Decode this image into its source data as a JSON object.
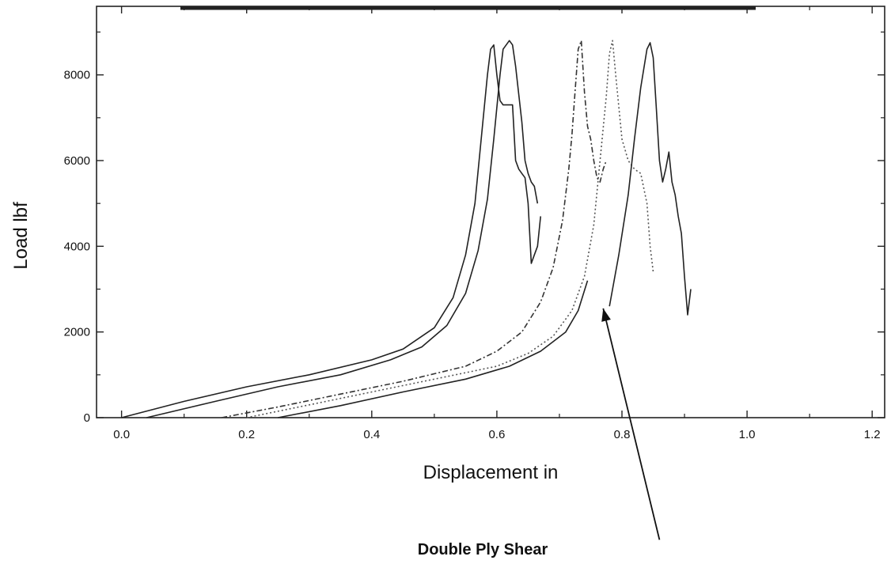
{
  "chart_data": {
    "type": "line",
    "xlabel": "Displacement in",
    "ylabel": "Load lbf",
    "caption": "Double Ply Shear",
    "xlim": [
      -0.04,
      1.22
    ],
    "ylim": [
      0,
      9600
    ],
    "x_ticks": [
      0.0,
      0.2,
      0.4,
      0.6,
      0.8,
      1.0,
      1.2
    ],
    "x_tick_labels": [
      "0.0",
      "0.2",
      "0.4",
      "0.6",
      "0.8",
      "1.0",
      "1.2"
    ],
    "y_ticks": [
      0,
      2000,
      4000,
      6000,
      8000
    ],
    "y_tick_labels": [
      "0",
      "2000",
      "4000",
      "6000",
      "8000"
    ],
    "grid": false,
    "series": [
      {
        "style": "solid",
        "color": "#222222",
        "points": [
          [
            0.0,
            0
          ],
          [
            0.1,
            380
          ],
          [
            0.2,
            720
          ],
          [
            0.3,
            1000
          ],
          [
            0.4,
            1350
          ],
          [
            0.45,
            1600
          ],
          [
            0.5,
            2100
          ],
          [
            0.53,
            2800
          ],
          [
            0.55,
            3800
          ],
          [
            0.565,
            5000
          ],
          [
            0.575,
            6500
          ],
          [
            0.585,
            8000
          ],
          [
            0.59,
            8600
          ],
          [
            0.595,
            8700
          ],
          [
            0.6,
            8000
          ],
          [
            0.605,
            7400
          ],
          [
            0.61,
            7300
          ],
          [
            0.62,
            7300
          ],
          [
            0.625,
            7300
          ],
          [
            0.63,
            6000
          ],
          [
            0.635,
            5800
          ],
          [
            0.64,
            5700
          ],
          [
            0.645,
            5600
          ],
          [
            0.65,
            5000
          ],
          [
            0.655,
            3600
          ],
          [
            0.66,
            3800
          ],
          [
            0.665,
            4000
          ],
          [
            0.67,
            4700
          ]
        ]
      },
      {
        "style": "solid",
        "color": "#222222",
        "points": [
          [
            0.04,
            0
          ],
          [
            0.15,
            380
          ],
          [
            0.25,
            720
          ],
          [
            0.35,
            1000
          ],
          [
            0.43,
            1350
          ],
          [
            0.48,
            1650
          ],
          [
            0.52,
            2150
          ],
          [
            0.55,
            2900
          ],
          [
            0.57,
            3900
          ],
          [
            0.585,
            5100
          ],
          [
            0.595,
            6500
          ],
          [
            0.605,
            8000
          ],
          [
            0.61,
            8600
          ],
          [
            0.62,
            8800
          ],
          [
            0.625,
            8700
          ],
          [
            0.63,
            8200
          ],
          [
            0.64,
            6900
          ],
          [
            0.645,
            6000
          ],
          [
            0.65,
            5700
          ],
          [
            0.655,
            5500
          ],
          [
            0.66,
            5400
          ],
          [
            0.665,
            5000
          ]
        ]
      },
      {
        "style": "dash-dot",
        "color": "#333333",
        "points": [
          [
            0.16,
            0
          ],
          [
            0.25,
            250
          ],
          [
            0.35,
            550
          ],
          [
            0.45,
            850
          ],
          [
            0.55,
            1200
          ],
          [
            0.6,
            1550
          ],
          [
            0.64,
            2000
          ],
          [
            0.67,
            2700
          ],
          [
            0.69,
            3500
          ],
          [
            0.705,
            4600
          ],
          [
            0.715,
            5800
          ],
          [
            0.72,
            6600
          ],
          [
            0.725,
            7600
          ],
          [
            0.73,
            8600
          ],
          [
            0.735,
            8800
          ],
          [
            0.74,
            7600
          ],
          [
            0.745,
            6800
          ],
          [
            0.75,
            6500
          ],
          [
            0.755,
            6000
          ],
          [
            0.76,
            5600
          ],
          [
            0.765,
            5500
          ],
          [
            0.77,
            5800
          ],
          [
            0.775,
            6000
          ]
        ]
      },
      {
        "style": "dotted",
        "color": "#555555",
        "points": [
          [
            0.2,
            0
          ],
          [
            0.3,
            300
          ],
          [
            0.4,
            600
          ],
          [
            0.5,
            900
          ],
          [
            0.6,
            1200
          ],
          [
            0.65,
            1500
          ],
          [
            0.69,
            1900
          ],
          [
            0.72,
            2500
          ],
          [
            0.74,
            3300
          ],
          [
            0.755,
            4500
          ],
          [
            0.765,
            6000
          ],
          [
            0.775,
            7500
          ],
          [
            0.78,
            8500
          ],
          [
            0.785,
            8800
          ],
          [
            0.79,
            8000
          ],
          [
            0.8,
            6500
          ],
          [
            0.81,
            6000
          ],
          [
            0.82,
            5800
          ],
          [
            0.83,
            5700
          ],
          [
            0.84,
            5000
          ],
          [
            0.845,
            4000
          ],
          [
            0.85,
            3400
          ]
        ]
      },
      {
        "style": "solid",
        "color": "#222222",
        "points": [
          [
            0.25,
            0
          ],
          [
            0.35,
            280
          ],
          [
            0.45,
            600
          ],
          [
            0.55,
            900
          ],
          [
            0.62,
            1200
          ],
          [
            0.67,
            1550
          ],
          [
            0.71,
            2000
          ],
          [
            0.73,
            2500
          ],
          [
            0.745,
            3200
          ]
        ]
      },
      {
        "style": "solid",
        "color": "#222222",
        "points": [
          [
            0.78,
            2600
          ],
          [
            0.795,
            3800
          ],
          [
            0.81,
            5200
          ],
          [
            0.82,
            6500
          ],
          [
            0.83,
            7700
          ],
          [
            0.84,
            8600
          ],
          [
            0.845,
            8750
          ],
          [
            0.85,
            8400
          ],
          [
            0.855,
            7200
          ],
          [
            0.86,
            6000
          ],
          [
            0.865,
            5500
          ],
          [
            0.87,
            5800
          ],
          [
            0.875,
            6200
          ],
          [
            0.88,
            5500
          ],
          [
            0.885,
            5200
          ],
          [
            0.89,
            4700
          ],
          [
            0.895,
            4300
          ],
          [
            0.9,
            3300
          ],
          [
            0.905,
            2400
          ],
          [
            0.91,
            3000
          ]
        ]
      }
    ],
    "annotation": {
      "arrow_from": [
        0.86,
        -2850
      ],
      "arrow_to": [
        0.77,
        2550
      ]
    }
  }
}
